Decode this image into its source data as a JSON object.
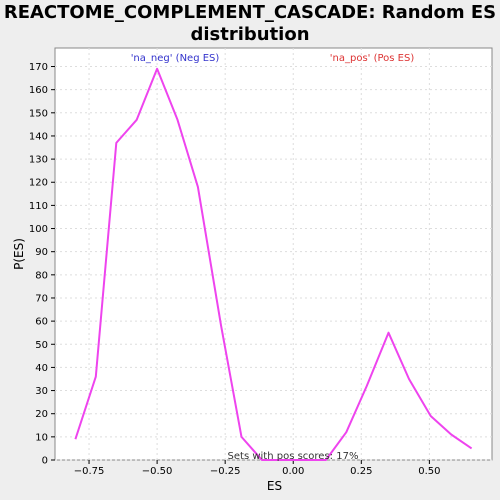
{
  "chart_data": {
    "type": "line",
    "title_lines": [
      "REACTOME_COMPLEMENT_CASCADE: Random ES",
      "distribution"
    ],
    "xlabel": "ES",
    "ylabel": "P(ES)",
    "xlim": [
      -0.875,
      0.73
    ],
    "ylim": [
      0,
      178
    ],
    "xticks": [
      -0.75,
      -0.5,
      -0.25,
      0.0,
      0.25,
      0.5
    ],
    "xtick_labels": [
      "−0.75",
      "−0.50",
      "−0.25",
      "0.00",
      "0.25",
      "0.50"
    ],
    "yticks": [
      0,
      10,
      20,
      30,
      40,
      50,
      60,
      70,
      80,
      90,
      100,
      110,
      120,
      130,
      140,
      150,
      160,
      170
    ],
    "grid": true,
    "series": [
      {
        "color": "#ee44ee",
        "x": [
          -0.8,
          -0.725,
          -0.65,
          -0.575,
          -0.5,
          -0.425,
          -0.35,
          -0.265,
          -0.19,
          -0.115,
          -0.04,
          0.04,
          0.12,
          0.195,
          0.27,
          0.35,
          0.425,
          0.505,
          0.58,
          0.655
        ],
        "y": [
          9,
          36,
          137,
          147,
          169,
          147,
          118,
          58,
          10,
          0,
          0,
          0,
          0,
          12,
          32,
          55,
          35,
          19,
          11,
          5
        ]
      }
    ],
    "annotations": {
      "neg_label": "'na_neg' (Neg ES)",
      "pos_label": "'na_pos' (Pos ES)",
      "pos_scores_text": "Sets with pos scores: 17%"
    },
    "colors": {
      "neg_label": "#3333cc",
      "pos_label": "#dd3333",
      "line": "#ee44ee",
      "plot_bg": "#ffffff",
      "grid": "#dddddd"
    }
  }
}
